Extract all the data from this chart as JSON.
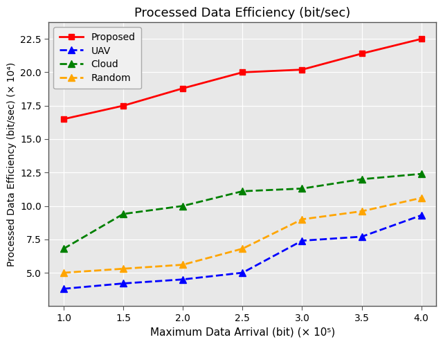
{
  "title": "Processed Data Efficiency (bit/sec)",
  "xlabel": "Maximum Data Arrival (bit) (× 10⁵)",
  "ylabel": "Processed Data Efficiency (bit/sec) (× 10⁴)",
  "x": [
    1.0,
    1.5,
    2.0,
    2.5,
    3.0,
    3.5,
    4.0
  ],
  "proposed": [
    16.5,
    17.5,
    18.8,
    20.0,
    20.2,
    21.4,
    22.5
  ],
  "uav": [
    3.8,
    4.2,
    4.5,
    5.0,
    7.4,
    7.7,
    9.3
  ],
  "cloud": [
    6.8,
    9.4,
    10.0,
    11.1,
    11.3,
    12.0,
    12.4
  ],
  "random": [
    5.0,
    5.3,
    5.6,
    6.8,
    9.0,
    9.6,
    10.6
  ],
  "proposed_color": "#ff0000",
  "uav_color": "#0000ff",
  "cloud_color": "#008000",
  "random_color": "#ffa500",
  "proposed_label": "Proposed",
  "uav_label": "UAV",
  "cloud_label": "Cloud",
  "random_label": "Random",
  "xlim": [
    0.875,
    4.125
  ],
  "ylim": [
    2.5,
    23.75
  ],
  "yticks": [
    5.0,
    7.5,
    10.0,
    12.5,
    15.0,
    17.5,
    20.0,
    22.5
  ],
  "xticks": [
    1.0,
    1.5,
    2.0,
    2.5,
    3.0,
    3.5,
    4.0
  ],
  "plot_bg_color": "#e8e8e8",
  "fig_bg_color": "#ffffff",
  "grid_color": "#ffffff"
}
